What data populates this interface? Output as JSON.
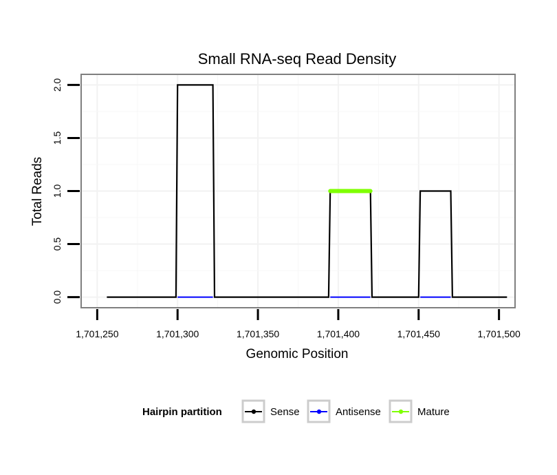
{
  "chart_data": {
    "type": "line",
    "title": "Small RNA-seq Read Density",
    "xlabel": "Genomic Position",
    "ylabel": "Total Reads",
    "xlim": [
      1701240,
      1701510
    ],
    "ylim": [
      -0.1,
      2.1
    ],
    "x_ticks": [
      1701250,
      1701300,
      1701350,
      1701400,
      1701450,
      1701500
    ],
    "x_tick_labels": [
      "1,701,250",
      "1,701,300",
      "1,701,350",
      "1,701,400",
      "1,701,450",
      "1,701,500"
    ],
    "y_ticks": [
      0,
      0.5,
      1,
      1.5,
      2
    ],
    "y_tick_labels": [
      "0.0",
      "0.5",
      "1.0",
      "1.5",
      "2.0"
    ],
    "grid": true,
    "legend_position": "bottom",
    "series": [
      {
        "name": "Sense",
        "color": "#000000",
        "points": [
          [
            1701256,
            0
          ],
          [
            1701299,
            0
          ],
          [
            1701300,
            2
          ],
          [
            1701322,
            2
          ],
          [
            1701323,
            0
          ],
          [
            1701394,
            0
          ],
          [
            1701395,
            1
          ],
          [
            1701420,
            1
          ],
          [
            1701421,
            0
          ],
          [
            1701450,
            0
          ],
          [
            1701451,
            1
          ],
          [
            1701470,
            1
          ],
          [
            1701471,
            0
          ],
          [
            1701505,
            0
          ]
        ]
      },
      {
        "name": "Antisense",
        "color": "#0000ff",
        "segments": [
          [
            1701300,
            1701322
          ],
          [
            1701395,
            1701420
          ],
          [
            1701451,
            1701470
          ]
        ],
        "value": 0
      },
      {
        "name": "Mature",
        "color": "#7fff00",
        "segments": [
          [
            1701395,
            1701420
          ]
        ],
        "value": 1
      }
    ]
  },
  "legend": {
    "title": "Hairpin partition",
    "items": [
      {
        "label": "Sense",
        "color": "#000000"
      },
      {
        "label": "Antisense",
        "color": "#0000ff"
      },
      {
        "label": "Mature",
        "color": "#7fff00"
      }
    ]
  }
}
